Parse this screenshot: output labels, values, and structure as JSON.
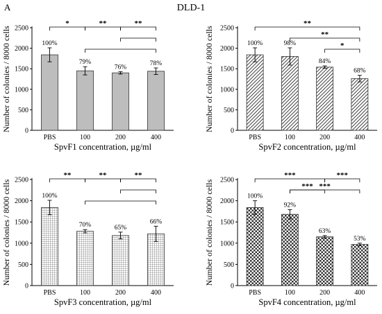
{
  "figure": {
    "panel_label": "A",
    "title": "DLD-1"
  },
  "chart_data": [
    {
      "type": "bar",
      "categories": [
        "PBS",
        "100",
        "200",
        "400"
      ],
      "values": [
        1840,
        1450,
        1400,
        1440
      ],
      "errors": [
        170,
        100,
        30,
        80
      ],
      "labels": [
        "100%",
        "79%",
        "76%",
        "78%"
      ],
      "xlabel": "SpvF1 concentration, µg/ml",
      "ylabel": "Number of colonies / 8000 cells",
      "ylim": [
        0,
        2500
      ],
      "yticks": [
        "0",
        "500",
        "1000",
        "1500",
        "2000",
        "2500"
      ],
      "fill": "solid-gray",
      "significance": [
        {
          "from": 0,
          "to": 1,
          "label": "*",
          "level": 0
        },
        {
          "from": 1,
          "to": 2,
          "label": "**",
          "level": 0
        },
        {
          "from": 2,
          "to": 3,
          "label": "**",
          "level": 0
        },
        {
          "from": 2,
          "to": 3,
          "label": "",
          "level": 1
        },
        {
          "from": 1,
          "to": 3,
          "label": "",
          "level": 2
        }
      ]
    },
    {
      "type": "bar",
      "categories": [
        "PBS",
        "100",
        "200",
        "400"
      ],
      "values": [
        1840,
        1800,
        1540,
        1260
      ],
      "errors": [
        170,
        210,
        30,
        80
      ],
      "labels": [
        "100%",
        "98%",
        "84%",
        "68%"
      ],
      "xlabel": "SpvF2 concentration, µg/ml",
      "ylabel": "Number of colonies / 8000 cells",
      "ylim": [
        0,
        2500
      ],
      "yticks": [
        "0",
        "500",
        "1000",
        "1500",
        "2000",
        "2500"
      ],
      "fill": "diagonal-hatch",
      "significance": [
        {
          "from": 0,
          "to": 3,
          "label": "**",
          "level": 0
        },
        {
          "from": 1,
          "to": 3,
          "label": "**",
          "level": 1
        },
        {
          "from": 2,
          "to": 3,
          "label": "*",
          "level": 2
        }
      ]
    },
    {
      "type": "bar",
      "categories": [
        "PBS",
        "100",
        "200",
        "400"
      ],
      "values": [
        1840,
        1280,
        1180,
        1220
      ],
      "errors": [
        170,
        40,
        80,
        180
      ],
      "labels": [
        "100%",
        "70%",
        "65%",
        "66%"
      ],
      "xlabel": "SpvF3 concentration, µg/ml",
      "ylabel": "Number of colonies / 8000 cells",
      "ylim": [
        0,
        2500
      ],
      "yticks": [
        "0",
        "500",
        "1000",
        "1500",
        "2000",
        "2500"
      ],
      "fill": "grid-hatch",
      "significance": [
        {
          "from": 0,
          "to": 1,
          "label": "**",
          "level": 0
        },
        {
          "from": 1,
          "to": 2,
          "label": "**",
          "level": 0
        },
        {
          "from": 2,
          "to": 3,
          "label": "**",
          "level": 0
        },
        {
          "from": 2,
          "to": 3,
          "label": "",
          "level": 1
        },
        {
          "from": 1,
          "to": 3,
          "label": "",
          "level": 2
        }
      ]
    },
    {
      "type": "bar",
      "categories": [
        "PBS",
        "100",
        "200",
        "400"
      ],
      "values": [
        1840,
        1680,
        1150,
        970
      ],
      "errors": [
        160,
        110,
        30,
        30
      ],
      "labels": [
        "100%",
        "92%",
        "63%",
        "53%"
      ],
      "xlabel": "SpvF4 concentration, µg/ml",
      "ylabel": "Number of colonies / 8000 cells",
      "ylim": [
        0,
        2500
      ],
      "yticks": [
        "0",
        "500",
        "1000",
        "1500",
        "2000",
        "2500"
      ],
      "fill": "checker",
      "significance": [
        {
          "from": 0,
          "to": 2,
          "label": "***",
          "level": 0
        },
        {
          "from": 2,
          "to": 3,
          "label": "***",
          "level": 0
        },
        {
          "from": 1,
          "to": 2,
          "label": "***",
          "level": 1
        },
        {
          "from": 1,
          "to": 3,
          "label": "***",
          "level": 1
        }
      ]
    }
  ]
}
